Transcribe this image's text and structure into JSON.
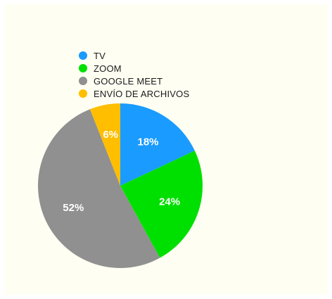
{
  "chart_data": {
    "type": "pie",
    "title": "",
    "legend_position": "top-left",
    "slices": [
      {
        "label": "TV",
        "value": 18,
        "display": "18%",
        "color": "#1a9bff"
      },
      {
        "label": "ZOOM",
        "value": 24,
        "display": "24%",
        "color": "#00e000"
      },
      {
        "label": "GOOGLE MEET",
        "value": 52,
        "display": "52%",
        "color": "#909090"
      },
      {
        "label": "ENVÍO DE ARCHIVOS",
        "value": 6,
        "display": "6%",
        "color": "#ffbe00"
      }
    ]
  }
}
